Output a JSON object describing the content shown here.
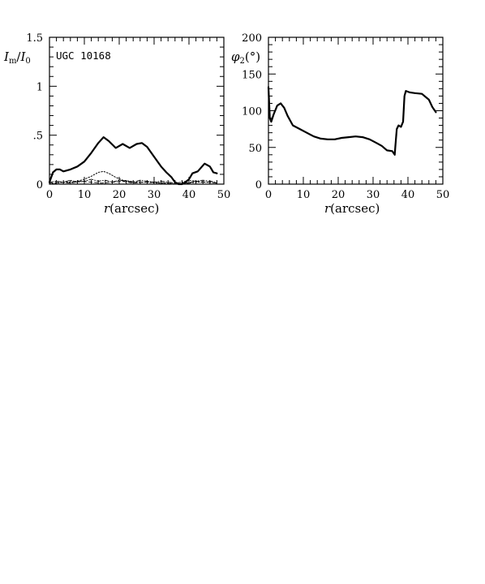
{
  "chart_data": [
    {
      "type": "line",
      "panel_label": "UGC 10168",
      "ylabel_main": "I",
      "ylabel_sub1": "m",
      "ylabel_sep": "/",
      "ylabel_main2": "I",
      "ylabel_sub2": "0",
      "xlabel_var": "r",
      "xlabel_unit": "(arcsec)",
      "xlim": [
        0,
        50
      ],
      "ylim": [
        0,
        1.5
      ],
      "xticks": [
        0,
        10,
        20,
        30,
        40,
        50
      ],
      "xtick_labels": [
        "0",
        "10",
        "20",
        "30",
        "40",
        "50"
      ],
      "yticks": [
        0,
        0.5,
        1,
        1.5
      ],
      "ytick_labels": [
        "0",
        ".5",
        "1",
        "1.5"
      ],
      "series": [
        {
          "style": "solid",
          "x": [
            0,
            1,
            2,
            3,
            4,
            6,
            8,
            10,
            12,
            14,
            15.5,
            17,
            19,
            21,
            23,
            25,
            26.5,
            28,
            30,
            32,
            33.5,
            35,
            36,
            37,
            38,
            39,
            40,
            41,
            42.5,
            44.5,
            46,
            47,
            48
          ],
          "y": [
            0.02,
            0.12,
            0.15,
            0.15,
            0.13,
            0.15,
            0.18,
            0.23,
            0.32,
            0.42,
            0.48,
            0.44,
            0.37,
            0.41,
            0.37,
            0.41,
            0.42,
            0.38,
            0.28,
            0.18,
            0.12,
            0.07,
            0.02,
            0.0,
            0.0,
            0.02,
            0.05,
            0.11,
            0.13,
            0.21,
            0.18,
            0.12,
            0.11
          ]
        },
        {
          "style": "dotted",
          "x": [
            0,
            2,
            4,
            6,
            8,
            10,
            12,
            14,
            15.5,
            17,
            19,
            21,
            23,
            25,
            28,
            31,
            34,
            36,
            38,
            40,
            42,
            44,
            46,
            48
          ],
          "y": [
            0.0,
            0.01,
            0.02,
            0.02,
            0.03,
            0.05,
            0.08,
            0.12,
            0.13,
            0.11,
            0.07,
            0.04,
            0.03,
            0.02,
            0.02,
            0.01,
            0.01,
            0.0,
            0.0,
            0.01,
            0.02,
            0.02,
            0.02,
            0.01
          ]
        },
        {
          "style": "dash-dot",
          "x": [
            0,
            2,
            4,
            6,
            8,
            10,
            12,
            14,
            16,
            18,
            20,
            22,
            24,
            26,
            28,
            30,
            32,
            34,
            36,
            38,
            40,
            42,
            44,
            46,
            48
          ],
          "y": [
            0.02,
            0.03,
            0.02,
            0.04,
            0.02,
            0.03,
            0.05,
            0.03,
            0.04,
            0.02,
            0.04,
            0.03,
            0.02,
            0.04,
            0.03,
            0.02,
            0.03,
            0.02,
            0.01,
            0.02,
            0.04,
            0.03,
            0.04,
            0.03,
            0.02
          ]
        },
        {
          "style": "dashed",
          "x": [
            0,
            3,
            6,
            9,
            12,
            15,
            18,
            21,
            24,
            27,
            30,
            33,
            36,
            39,
            42,
            45,
            48
          ],
          "y": [
            0.01,
            0.02,
            0.01,
            0.03,
            0.02,
            0.01,
            0.02,
            0.03,
            0.01,
            0.02,
            0.02,
            0.01,
            0.0,
            0.01,
            0.03,
            0.02,
            0.01
          ]
        }
      ]
    },
    {
      "type": "line",
      "ylabel_main": "φ",
      "ylabel_sub": "2",
      "ylabel_unit": "(°)",
      "xlabel_var": "r",
      "xlabel_unit": "(arcsec)",
      "xlim": [
        0,
        50
      ],
      "ylim": [
        0,
        200
      ],
      "xticks": [
        0,
        10,
        20,
        30,
        40,
        50
      ],
      "xtick_labels": [
        "0",
        "10",
        "20",
        "30",
        "40",
        "50"
      ],
      "yticks": [
        0,
        50,
        100,
        150,
        200
      ],
      "ytick_labels": [
        "0",
        "50",
        "100",
        "150",
        "200"
      ],
      "series": [
        {
          "style": "solid",
          "x": [
            0,
            0.4,
            0.8,
            1.5,
            2.5,
            3.5,
            4.5,
            5.5,
            7,
            9,
            11,
            13,
            15,
            17,
            19,
            21,
            23,
            25,
            27,
            29,
            31,
            32.5,
            34,
            35.5,
            36.2,
            36.4,
            36.8,
            37.3,
            38,
            38.6,
            39,
            39.4,
            40.5,
            42,
            44,
            46,
            47,
            48
          ],
          "y": [
            132,
            90,
            85,
            95,
            107,
            110,
            104,
            93,
            80,
            75,
            70,
            65,
            62,
            61,
            61,
            63,
            64,
            65,
            64,
            61,
            56,
            52,
            46,
            45,
            40,
            52,
            75,
            80,
            78,
            85,
            120,
            127,
            125,
            124,
            123,
            115,
            105,
            98
          ]
        }
      ]
    }
  ]
}
